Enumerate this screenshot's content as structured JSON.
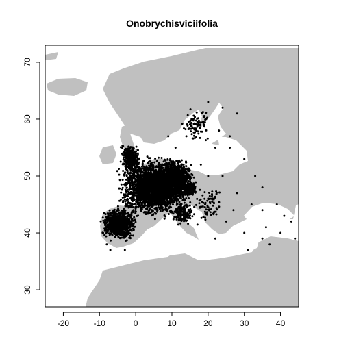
{
  "chart_data": {
    "type": "scatter",
    "title": "Onobrychisviciifolia",
    "xlabel": "",
    "ylabel": "",
    "xlim": [
      -25,
      45
    ],
    "ylim": [
      27,
      73
    ],
    "x_ticks": [
      -20,
      -10,
      0,
      10,
      20,
      30,
      40
    ],
    "y_ticks": [
      30,
      40,
      50,
      60,
      70
    ],
    "grid": false,
    "map_fill_color": "#c0c0c0",
    "point_color": "#000000",
    "series": [
      {
        "dense_clusters": [
          {
            "lon": 5,
            "lat": 48,
            "lon_spread": 11,
            "lat_spread": 6,
            "count": 2600
          },
          {
            "lon": 11,
            "lat": 49.5,
            "lon_spread": 6,
            "lat_spread": 4,
            "count": 1000
          },
          {
            "lon": -4.5,
            "lat": 41.5,
            "lon_spread": 5.5,
            "lat_spread": 3.2,
            "count": 900
          },
          {
            "lon": -1.5,
            "lat": 53,
            "lon_spread": 3,
            "lat_spread": 3,
            "count": 320
          },
          {
            "lon": 13,
            "lat": 43.5,
            "lon_spread": 3.5,
            "lat_spread": 2.5,
            "count": 140
          },
          {
            "lon": 15,
            "lat": 47.7,
            "lon_spread": 1.8,
            "lat_spread": 1.2,
            "count": 350
          },
          {
            "lon": 17,
            "lat": 59,
            "lon_spread": 5,
            "lat_spread": 4,
            "count": 90
          },
          {
            "lon": 20,
            "lat": 45,
            "lon_spread": 5,
            "lat_spread": 4,
            "count": 80
          }
        ],
        "scattered_points": [
          [
            24,
            62
          ],
          [
            28,
            61
          ],
          [
            26,
            55
          ],
          [
            22,
            55
          ],
          [
            30,
            53
          ],
          [
            33,
            50
          ],
          [
            35,
            48
          ],
          [
            28,
            47
          ],
          [
            32,
            45
          ],
          [
            25,
            42
          ],
          [
            30,
            40
          ],
          [
            35,
            39
          ],
          [
            37,
            38
          ],
          [
            40,
            40
          ],
          [
            43,
            42
          ],
          [
            44,
            39
          ],
          [
            39,
            45
          ],
          [
            41,
            43
          ],
          [
            22,
            39
          ],
          [
            36,
            41
          ],
          [
            31,
            37
          ],
          [
            18,
            52
          ],
          [
            20,
            50
          ],
          [
            24,
            50
          ],
          [
            26,
            57
          ],
          [
            23,
            58
          ],
          [
            20,
            63
          ],
          [
            14,
            57
          ],
          [
            11,
            55
          ],
          [
            9,
            57
          ],
          [
            35,
            44
          ],
          [
            27,
            44
          ],
          [
            -8,
            38
          ],
          [
            -9,
            40
          ],
          [
            -7,
            37
          ],
          [
            -3,
            37
          ]
        ]
      }
    ]
  }
}
